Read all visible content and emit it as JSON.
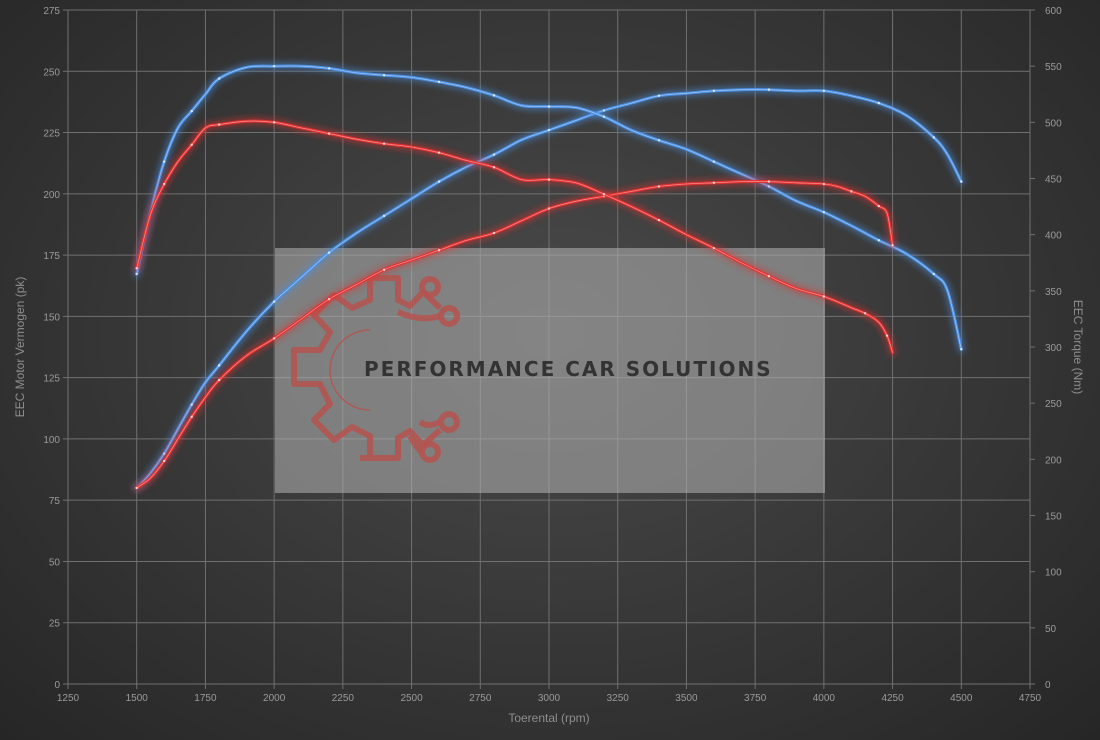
{
  "chart_data": {
    "type": "line",
    "xlabel": "Toerental (rpm)",
    "ylabel": "EEC Motor Vermogen (pk)",
    "y2label": "EEC Torque (Nm)",
    "xlim": [
      1250,
      4750
    ],
    "ylim": [
      0,
      275
    ],
    "y2lim": [
      0,
      600
    ],
    "xticks": [
      1250,
      1500,
      1750,
      2000,
      2250,
      2500,
      2750,
      3000,
      3250,
      3500,
      3750,
      4000,
      4250,
      4500,
      4750
    ],
    "yticks": [
      0,
      25,
      50,
      75,
      100,
      125,
      150,
      175,
      200,
      225,
      250,
      275
    ],
    "y2ticks": [
      0,
      50,
      100,
      150,
      200,
      250,
      300,
      350,
      400,
      450,
      500,
      550,
      600
    ],
    "grid": true,
    "series": [
      {
        "axis": "left",
        "color": "#4a8fe0",
        "x": [
          1500,
          1550,
          1600,
          1650,
          1700,
          1750,
          1800,
          1900,
          2000,
          2100,
          2200,
          2300,
          2400,
          2500,
          2600,
          2700,
          2800,
          2900,
          3000,
          3100,
          3200,
          3300,
          3400,
          3500,
          3600,
          3700,
          3800,
          3900,
          4000,
          4100,
          4200,
          4300,
          4400,
          4450,
          4500
        ],
        "values": [
          80,
          86,
          94,
          104,
          114,
          123,
          130,
          144,
          156,
          166,
          176,
          184,
          191,
          198,
          205,
          211,
          216,
          222,
          226,
          230,
          234,
          237,
          240,
          241,
          242,
          242.5,
          242.5,
          242,
          242,
          240,
          237,
          232,
          223,
          216,
          205
        ]
      },
      {
        "axis": "right",
        "color": "#4a8fe0",
        "x": [
          1500,
          1550,
          1600,
          1650,
          1700,
          1750,
          1800,
          1900,
          2000,
          2100,
          2200,
          2300,
          2400,
          2500,
          2600,
          2700,
          2800,
          2900,
          3000,
          3100,
          3200,
          3300,
          3400,
          3500,
          3600,
          3700,
          3800,
          3900,
          4000,
          4100,
          4200,
          4300,
          4400,
          4450,
          4500
        ],
        "values": [
          365,
          420,
          465,
          495,
          510,
          525,
          539,
          549,
          550,
          550,
          548,
          544,
          542,
          540,
          536,
          531,
          524,
          515,
          514,
          513,
          505,
          493,
          484,
          476,
          465,
          454,
          443,
          430,
          420,
          408,
          395,
          383,
          365,
          350,
          298
        ]
      },
      {
        "axis": "left",
        "color": "#e03030",
        "x": [
          1500,
          1550,
          1600,
          1650,
          1700,
          1750,
          1800,
          1900,
          2000,
          2100,
          2200,
          2300,
          2400,
          2500,
          2600,
          2700,
          2800,
          2900,
          3000,
          3100,
          3200,
          3300,
          3400,
          3500,
          3600,
          3700,
          3800,
          3900,
          4000,
          4050,
          4100,
          4150,
          4200,
          4230,
          4250
        ],
        "values": [
          80,
          84,
          91,
          100,
          109,
          117,
          124,
          134,
          141,
          149,
          157,
          163,
          169,
          173,
          177,
          181,
          184,
          189,
          194,
          197,
          199,
          201,
          203,
          204,
          204.5,
          205,
          205,
          204.5,
          204,
          203,
          201,
          199,
          195,
          192,
          179
        ]
      },
      {
        "axis": "right",
        "color": "#e03030",
        "x": [
          1500,
          1550,
          1600,
          1650,
          1700,
          1750,
          1800,
          1900,
          2000,
          2100,
          2200,
          2300,
          2400,
          2500,
          2600,
          2700,
          2800,
          2900,
          3000,
          3100,
          3200,
          3300,
          3400,
          3500,
          3600,
          3700,
          3800,
          3900,
          4000,
          4100,
          4150,
          4200,
          4230,
          4250
        ],
        "values": [
          370,
          418,
          445,
          465,
          480,
          495,
          498,
          501,
          500,
          495,
          490,
          485,
          481,
          478,
          473,
          466,
          460,
          449,
          449,
          446,
          436,
          425,
          413,
          400,
          388,
          375,
          363,
          352,
          345,
          335,
          330,
          322,
          310,
          295
        ]
      }
    ]
  },
  "watermark": {
    "text": "PERFORMANCE CAR SOLUTIONS"
  }
}
